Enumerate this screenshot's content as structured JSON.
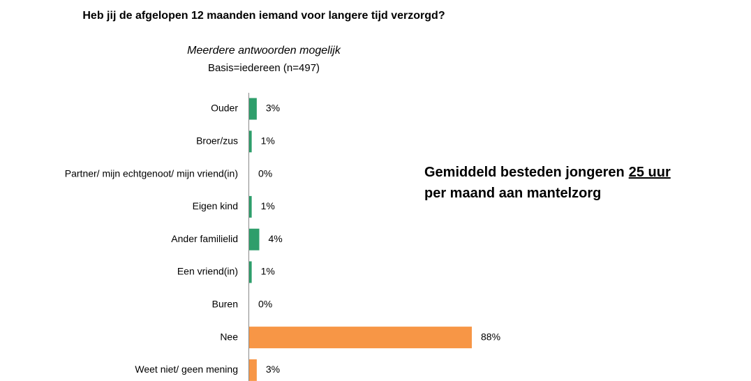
{
  "chart_data": {
    "type": "bar",
    "orientation": "horizontal",
    "title": "Heb jij de afgelopen 12 maanden iemand voor langere tijd verzorgd?",
    "subtitle": "Meerdere antwoorden mogelijk",
    "base": "Basis=iedereen (n=497)",
    "annotation": [
      "Gemiddeld besteden jongeren",
      "25 uur",
      "per maand aan mantelzorg"
    ],
    "categories": [
      "Ouder",
      "Broer/zus",
      "Partner/ mijn echtgenoot/ mijn vriend(in)",
      "Eigen kind",
      "Ander familielid",
      "Een vriend(in)",
      "Buren",
      "Nee",
      "Weet niet/ geen mening"
    ],
    "values": [
      3,
      1,
      0,
      1,
      4,
      1,
      0,
      88,
      3
    ],
    "value_labels": [
      "3%",
      "1%",
      "0%",
      "1%",
      "4%",
      "1%",
      "0%",
      "88%",
      "3%"
    ],
    "colors": [
      "#2e9e6b",
      "#2e9e6b",
      "#2e9e6b",
      "#2e9e6b",
      "#2e9e6b",
      "#2e9e6b",
      "#2e9e6b",
      "#f79646",
      "#f79646"
    ]
  }
}
